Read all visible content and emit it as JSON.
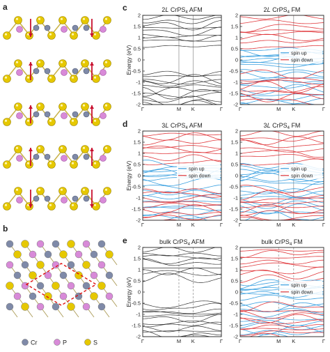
{
  "figure": {
    "panel_labels": [
      "a",
      "b",
      "c",
      "d",
      "e"
    ],
    "legend_atoms": [
      {
        "name": "Cr",
        "color": "#7f8aa8"
      },
      {
        "name": "P",
        "color": "#d88ad8"
      },
      {
        "name": "S",
        "color": "#e6c800"
      }
    ]
  },
  "chart_data": [
    {
      "type": "line",
      "title": "2L CrPS4 AFM",
      "title_main": "2",
      "title_italic": "L",
      "title_mid": " CrPS",
      "title_sub": "4",
      "title_tail": " AFM",
      "ylabel": "Energy (eV)",
      "ylim": [
        -2,
        2
      ],
      "yticks": [
        "2",
        "1.5",
        "1",
        "0.5",
        "0",
        "-0.5",
        "-1",
        "-1.5",
        "-2"
      ],
      "xticks": [
        "Γ",
        "M",
        "K",
        "Γ"
      ],
      "series": [
        {
          "color": "#333333"
        }
      ]
    },
    {
      "type": "line",
      "title": "2L CrPS4 FM",
      "title_main": "2",
      "title_italic": "L",
      "title_mid": " CrPS",
      "title_sub": "4",
      "title_tail": " FM",
      "ylim": [
        -2,
        2
      ],
      "yticks": [
        "2",
        "1.5",
        "1",
        "0.5",
        "0",
        "-0.5",
        "-1",
        "-1.5",
        "-2"
      ],
      "xticks": [
        "Γ",
        "M",
        "K",
        "Γ"
      ],
      "series": [
        {
          "name": "spin up",
          "color": "#3aa0e0"
        },
        {
          "name": "spin down",
          "color": "#e0383c"
        }
      ]
    },
    {
      "type": "line",
      "title": "3L CrPS4 AFM",
      "title_main": "3",
      "title_italic": "L",
      "title_mid": " CrPS",
      "title_sub": "4",
      "title_tail": " AFM",
      "ylabel": "Energy (eV)",
      "ylim": [
        -2,
        2
      ],
      "yticks": [
        "2",
        "1.5",
        "1",
        "0.5",
        "0",
        "-0.5",
        "-1",
        "-1.5",
        "-2"
      ],
      "xticks": [
        "Γ",
        "M",
        "K",
        "Γ"
      ],
      "series": [
        {
          "name": "spin up",
          "color": "#3aa0e0"
        },
        {
          "name": "spin down",
          "color": "#e0383c"
        }
      ]
    },
    {
      "type": "line",
      "title": "3L CrPS4 FM",
      "title_main": "3",
      "title_italic": "L",
      "title_mid": " CrPS",
      "title_sub": "4",
      "title_tail": " FM",
      "ylim": [
        -2,
        2
      ],
      "yticks": [
        "2",
        "1.5",
        "1",
        "0.5",
        "0",
        "-0.5",
        "-1",
        "-1.5",
        "-2"
      ],
      "xticks": [
        "Γ",
        "M",
        "K",
        "Γ"
      ],
      "series": [
        {
          "name": "spin up",
          "color": "#3aa0e0"
        },
        {
          "name": "spin down",
          "color": "#e0383c"
        }
      ]
    },
    {
      "type": "line",
      "title": "bulk CrPS4 AFM",
      "title_main": "bulk",
      "title_italic": "",
      "title_mid": " CrPS",
      "title_sub": "4",
      "title_tail": " AFM",
      "ylabel": "Energy (eV)",
      "ylim": [
        -2,
        2
      ],
      "yticks": [
        "2",
        "1.5",
        "1",
        "0.5",
        "0",
        "-0.5",
        "-1",
        "-1.5",
        "-2"
      ],
      "xticks": [
        "Γ",
        "M",
        "K",
        "Γ"
      ],
      "series": [
        {
          "color": "#333333"
        }
      ]
    },
    {
      "type": "line",
      "title": "bulk CrPS4 FM",
      "title_main": "bulk",
      "title_italic": "",
      "title_mid": " CrPS",
      "title_sub": "4",
      "title_tail": " FM",
      "ylim": [
        -2,
        2
      ],
      "yticks": [
        "2",
        "1.5",
        "1",
        "0.5",
        "0",
        "-0.5",
        "-1",
        "-1.5",
        "-2"
      ],
      "xticks": [
        "Γ",
        "M",
        "K",
        "Γ"
      ],
      "series": [
        {
          "name": "spin up",
          "color": "#3aa0e0"
        },
        {
          "name": "spin down",
          "color": "#e0383c"
        }
      ]
    }
  ]
}
